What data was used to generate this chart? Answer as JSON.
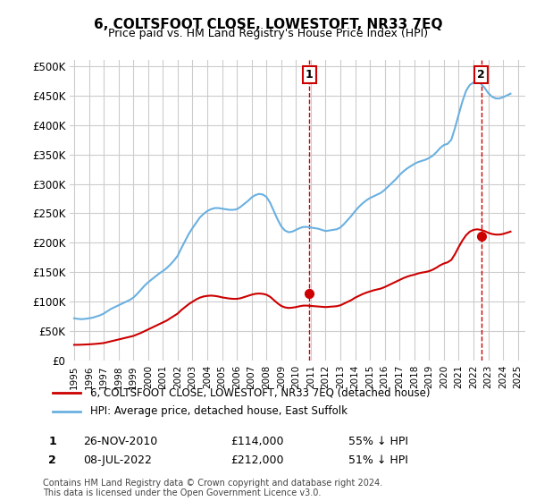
{
  "title": "6, COLTSFOOT CLOSE, LOWESTOFT, NR33 7EQ",
  "subtitle": "Price paid vs. HM Land Registry's House Price Index (HPI)",
  "ylabel": "",
  "xlim_start": 1995,
  "xlim_end": 2025.5,
  "ylim_min": 0,
  "ylim_max": 510000,
  "yticks": [
    0,
    50000,
    100000,
    150000,
    200000,
    250000,
    300000,
    350000,
    400000,
    450000,
    500000
  ],
  "ytick_labels": [
    "£0",
    "£50K",
    "£100K",
    "£150K",
    "£200K",
    "£250K",
    "£300K",
    "£350K",
    "£400K",
    "£450K",
    "£500K"
  ],
  "xtick_years": [
    1995,
    1996,
    1997,
    1998,
    1999,
    2000,
    2001,
    2002,
    2003,
    2004,
    2005,
    2006,
    2007,
    2008,
    2009,
    2010,
    2011,
    2012,
    2013,
    2014,
    2015,
    2016,
    2017,
    2018,
    2019,
    2020,
    2021,
    2022,
    2023,
    2024,
    2025
  ],
  "hpi_color": "#6ab0e0",
  "price_color": "#cc0000",
  "marker_color_1": "#cc0000",
  "marker_color_2": "#cc0000",
  "annotation_box_color": "#cc0000",
  "vline_color": "#cc0000",
  "grid_color": "#cccccc",
  "background_color": "#ffffff",
  "legend_box_color": "#000000",
  "footnote": "Contains HM Land Registry data © Crown copyright and database right 2024.\nThis data is licensed under the Open Government Licence v3.0.",
  "sale1_date_x": 2010.9,
  "sale1_price": 114000,
  "sale1_label": "1",
  "sale2_date_x": 2022.52,
  "sale2_price": 212000,
  "sale2_label": "2",
  "table_row1": [
    "1",
    "26-NOV-2010",
    "£114,000",
    "55% ↓ HPI"
  ],
  "table_row2": [
    "2",
    "08-JUL-2022",
    "£212,000",
    "51% ↓ HPI"
  ],
  "legend_line1": "6, COLTSFOOT CLOSE, LOWESTOFT, NR33 7EQ (detached house)",
  "legend_line2": "HPI: Average price, detached house, East Suffolk",
  "hpi_data_x": [
    1995.0,
    1995.25,
    1995.5,
    1995.75,
    1996.0,
    1996.25,
    1996.5,
    1996.75,
    1997.0,
    1997.25,
    1997.5,
    1997.75,
    1998.0,
    1998.25,
    1998.5,
    1998.75,
    1999.0,
    1999.25,
    1999.5,
    1999.75,
    2000.0,
    2000.25,
    2000.5,
    2000.75,
    2001.0,
    2001.25,
    2001.5,
    2001.75,
    2002.0,
    2002.25,
    2002.5,
    2002.75,
    2003.0,
    2003.25,
    2003.5,
    2003.75,
    2004.0,
    2004.25,
    2004.5,
    2004.75,
    2005.0,
    2005.25,
    2005.5,
    2005.75,
    2006.0,
    2006.25,
    2006.5,
    2006.75,
    2007.0,
    2007.25,
    2007.5,
    2007.75,
    2008.0,
    2008.25,
    2008.5,
    2008.75,
    2009.0,
    2009.25,
    2009.5,
    2009.75,
    2010.0,
    2010.25,
    2010.5,
    2010.75,
    2011.0,
    2011.25,
    2011.5,
    2011.75,
    2012.0,
    2012.25,
    2012.5,
    2012.75,
    2013.0,
    2013.25,
    2013.5,
    2013.75,
    2014.0,
    2014.25,
    2014.5,
    2014.75,
    2015.0,
    2015.25,
    2015.5,
    2015.75,
    2016.0,
    2016.25,
    2016.5,
    2016.75,
    2017.0,
    2017.25,
    2017.5,
    2017.75,
    2018.0,
    2018.25,
    2018.5,
    2018.75,
    2019.0,
    2019.25,
    2019.5,
    2019.75,
    2020.0,
    2020.25,
    2020.5,
    2020.75,
    2021.0,
    2021.25,
    2021.5,
    2021.75,
    2022.0,
    2022.25,
    2022.5,
    2022.75,
    2023.0,
    2023.25,
    2023.5,
    2023.75,
    2024.0,
    2024.25,
    2024.5
  ],
  "hpi_data_y": [
    72000,
    71000,
    70500,
    71000,
    72000,
    73000,
    75000,
    77000,
    80000,
    84000,
    88000,
    91000,
    94000,
    97000,
    100000,
    103000,
    107000,
    113000,
    120000,
    127000,
    133000,
    138000,
    143000,
    148000,
    152000,
    157000,
    163000,
    170000,
    178000,
    191000,
    203000,
    215000,
    225000,
    234000,
    243000,
    249000,
    254000,
    257000,
    259000,
    259000,
    258000,
    257000,
    256000,
    256000,
    257000,
    261000,
    266000,
    271000,
    277000,
    281000,
    283000,
    282000,
    278000,
    268000,
    254000,
    240000,
    228000,
    221000,
    218000,
    219000,
    222000,
    225000,
    227000,
    227000,
    226000,
    225000,
    224000,
    222000,
    220000,
    221000,
    222000,
    223000,
    226000,
    232000,
    239000,
    246000,
    254000,
    261000,
    267000,
    272000,
    276000,
    279000,
    282000,
    285000,
    290000,
    296000,
    302000,
    308000,
    315000,
    321000,
    326000,
    330000,
    334000,
    337000,
    339000,
    341000,
    344000,
    348000,
    354000,
    361000,
    366000,
    368000,
    375000,
    395000,
    418000,
    440000,
    458000,
    468000,
    472000,
    473000,
    470000,
    463000,
    454000,
    448000,
    445000,
    445000,
    447000,
    450000,
    453000
  ],
  "price_data_x": [
    1995.0,
    1995.25,
    1995.5,
    1995.75,
    1996.0,
    1996.25,
    1996.5,
    1996.75,
    1997.0,
    1997.25,
    1997.5,
    1997.75,
    1998.0,
    1998.25,
    1998.5,
    1998.75,
    1999.0,
    1999.25,
    1999.5,
    1999.75,
    2000.0,
    2000.25,
    2000.5,
    2000.75,
    2001.0,
    2001.25,
    2001.5,
    2001.75,
    2002.0,
    2002.25,
    2002.5,
    2002.75,
    2003.0,
    2003.25,
    2003.5,
    2003.75,
    2004.0,
    2004.25,
    2004.5,
    2004.75,
    2005.0,
    2005.25,
    2005.5,
    2005.75,
    2006.0,
    2006.25,
    2006.5,
    2006.75,
    2007.0,
    2007.25,
    2007.5,
    2007.75,
    2008.0,
    2008.25,
    2008.5,
    2008.75,
    2009.0,
    2009.25,
    2009.5,
    2009.75,
    2010.0,
    2010.25,
    2010.5,
    2010.75,
    2011.0,
    2011.25,
    2011.5,
    2011.75,
    2012.0,
    2012.25,
    2012.5,
    2012.75,
    2013.0,
    2013.25,
    2013.5,
    2013.75,
    2014.0,
    2014.25,
    2014.5,
    2014.75,
    2015.0,
    2015.25,
    2015.5,
    2015.75,
    2016.0,
    2016.25,
    2016.5,
    2016.75,
    2017.0,
    2017.25,
    2017.5,
    2017.75,
    2018.0,
    2018.25,
    2018.5,
    2018.75,
    2019.0,
    2019.25,
    2019.5,
    2019.75,
    2020.0,
    2020.25,
    2020.5,
    2020.75,
    2021.0,
    2021.25,
    2021.5,
    2021.75,
    2022.0,
    2022.25,
    2022.5,
    2022.75,
    2023.0,
    2023.25,
    2023.5,
    2023.75,
    2024.0,
    2024.25,
    2024.5
  ],
  "price_data_y": [
    27000,
    27000,
    27200,
    27500,
    27800,
    28200,
    28700,
    29300,
    30000,
    31500,
    33000,
    34500,
    36000,
    37500,
    39000,
    40500,
    42000,
    44500,
    47000,
    50000,
    53000,
    56000,
    59000,
    62000,
    65000,
    68000,
    72000,
    76000,
    80000,
    86000,
    91000,
    96000,
    100000,
    104000,
    107000,
    109000,
    110000,
    110500,
    110000,
    109000,
    107500,
    106500,
    105500,
    105000,
    105000,
    106000,
    108000,
    110000,
    112000,
    113500,
    114000,
    113500,
    112000,
    108500,
    103000,
    97500,
    93000,
    90500,
    89500,
    90000,
    91000,
    92500,
    93500,
    93500,
    93000,
    92500,
    92000,
    91500,
    91000,
    91500,
    92000,
    92500,
    94000,
    97000,
    100000,
    103000,
    107000,
    110000,
    113000,
    115500,
    117500,
    119500,
    121000,
    122500,
    125000,
    128000,
    131000,
    134000,
    137000,
    140000,
    142500,
    144500,
    146000,
    148000,
    149500,
    150500,
    152000,
    154500,
    158000,
    162000,
    165000,
    167000,
    171000,
    181000,
    193000,
    204000,
    213000,
    219000,
    222000,
    223000,
    222000,
    220000,
    217000,
    215000,
    214000,
    214000,
    215000,
    217000,
    219000
  ]
}
